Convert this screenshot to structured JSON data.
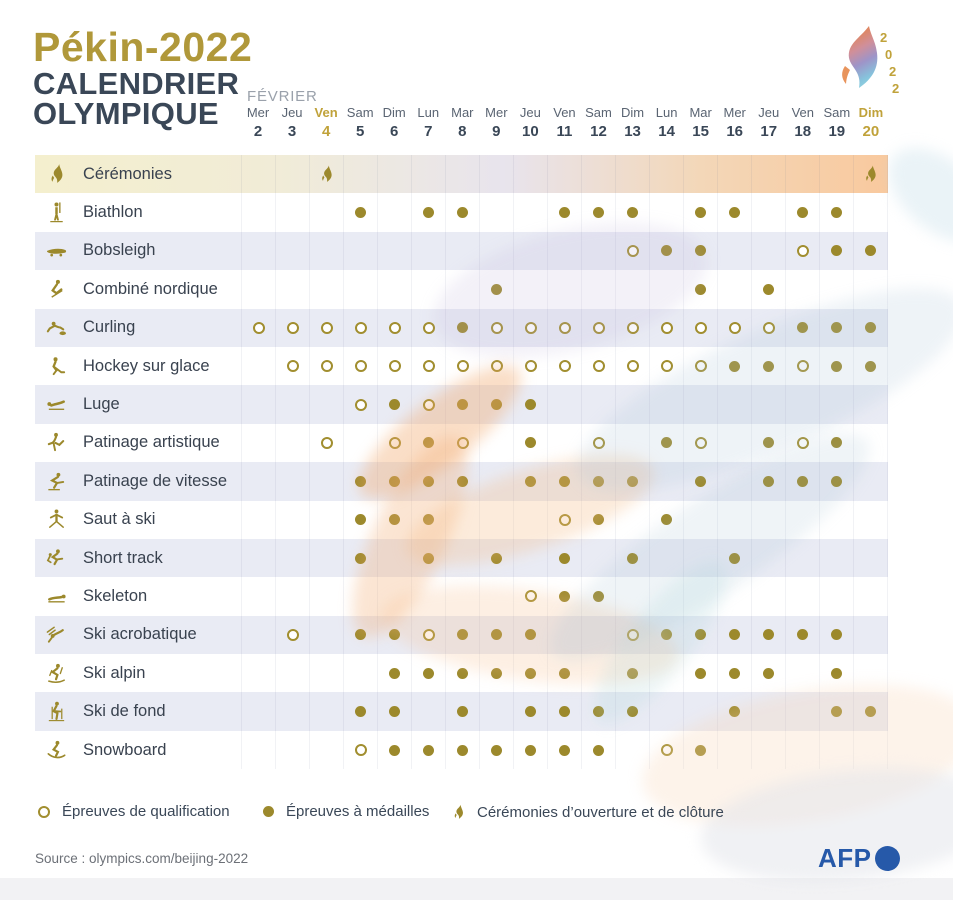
{
  "header": {
    "title": "Pékin-2022",
    "subtitle_line1": "CALENDRIER",
    "subtitle_line2": "OLYMPIQUE"
  },
  "logo": {
    "digits": [
      "2",
      "0",
      "2",
      "2"
    ]
  },
  "calendar": {
    "month_label": "FÉVRIER"
  },
  "chart_data": {
    "type": "table",
    "title": "Calendrier olympique Pékin-2022",
    "month": "FÉVRIER",
    "columns": [
      {
        "day": "Mer",
        "date": 2
      },
      {
        "day": "Jeu",
        "date": 3
      },
      {
        "day": "Ven",
        "date": 4,
        "accent": true
      },
      {
        "day": "Sam",
        "date": 5
      },
      {
        "day": "Dim",
        "date": 6
      },
      {
        "day": "Lun",
        "date": 7
      },
      {
        "day": "Mar",
        "date": 8
      },
      {
        "day": "Mer",
        "date": 9
      },
      {
        "day": "Jeu",
        "date": 10
      },
      {
        "day": "Ven",
        "date": 11
      },
      {
        "day": "Sam",
        "date": 12
      },
      {
        "day": "Dim",
        "date": 13
      },
      {
        "day": "Lun",
        "date": 14
      },
      {
        "day": "Mar",
        "date": 15
      },
      {
        "day": "Mer",
        "date": 16
      },
      {
        "day": "Jeu",
        "date": 17
      },
      {
        "day": "Ven",
        "date": 18
      },
      {
        "day": "Sam",
        "date": 19
      },
      {
        "day": "Dim",
        "date": 20,
        "accent": true
      }
    ],
    "rows": [
      {
        "sport": "Cérémonies",
        "icon": "flame-icon",
        "events": [
          {
            "date": 4,
            "type": "ceremony"
          },
          {
            "date": 20,
            "type": "ceremony"
          }
        ]
      },
      {
        "sport": "Biathlon",
        "icon": "biathlon-icon",
        "events": [
          {
            "date": 5,
            "type": "medal"
          },
          {
            "date": 7,
            "type": "medal"
          },
          {
            "date": 8,
            "type": "medal"
          },
          {
            "date": 11,
            "type": "medal"
          },
          {
            "date": 12,
            "type": "medal"
          },
          {
            "date": 13,
            "type": "medal"
          },
          {
            "date": 15,
            "type": "medal"
          },
          {
            "date": 16,
            "type": "medal"
          },
          {
            "date": 18,
            "type": "medal"
          },
          {
            "date": 19,
            "type": "medal"
          }
        ]
      },
      {
        "sport": "Bobsleigh",
        "icon": "bobsleigh-icon",
        "events": [
          {
            "date": 13,
            "type": "qualification"
          },
          {
            "date": 14,
            "type": "medal"
          },
          {
            "date": 15,
            "type": "medal"
          },
          {
            "date": 18,
            "type": "qualification"
          },
          {
            "date": 19,
            "type": "medal"
          },
          {
            "date": 20,
            "type": "medal"
          }
        ]
      },
      {
        "sport": "Combiné nordique",
        "icon": "combine-nordique-icon",
        "events": [
          {
            "date": 9,
            "type": "medal"
          },
          {
            "date": 15,
            "type": "medal"
          },
          {
            "date": 17,
            "type": "medal"
          }
        ]
      },
      {
        "sport": "Curling",
        "icon": "curling-icon",
        "events": [
          {
            "date": 2,
            "type": "qualification"
          },
          {
            "date": 3,
            "type": "qualification"
          },
          {
            "date": 4,
            "type": "qualification"
          },
          {
            "date": 5,
            "type": "qualification"
          },
          {
            "date": 6,
            "type": "qualification"
          },
          {
            "date": 7,
            "type": "qualification"
          },
          {
            "date": 8,
            "type": "medal"
          },
          {
            "date": 9,
            "type": "qualification"
          },
          {
            "date": 10,
            "type": "qualification"
          },
          {
            "date": 11,
            "type": "qualification"
          },
          {
            "date": 12,
            "type": "qualification"
          },
          {
            "date": 13,
            "type": "qualification"
          },
          {
            "date": 14,
            "type": "qualification"
          },
          {
            "date": 15,
            "type": "qualification"
          },
          {
            "date": 16,
            "type": "qualification"
          },
          {
            "date": 17,
            "type": "qualification"
          },
          {
            "date": 18,
            "type": "medal"
          },
          {
            "date": 19,
            "type": "medal"
          },
          {
            "date": 20,
            "type": "medal"
          }
        ]
      },
      {
        "sport": "Hockey sur glace",
        "icon": "hockey-icon",
        "events": [
          {
            "date": 3,
            "type": "qualification"
          },
          {
            "date": 4,
            "type": "qualification"
          },
          {
            "date": 5,
            "type": "qualification"
          },
          {
            "date": 6,
            "type": "qualification"
          },
          {
            "date": 7,
            "type": "qualification"
          },
          {
            "date": 8,
            "type": "qualification"
          },
          {
            "date": 9,
            "type": "qualification"
          },
          {
            "date": 10,
            "type": "qualification"
          },
          {
            "date": 11,
            "type": "qualification"
          },
          {
            "date": 12,
            "type": "qualification"
          },
          {
            "date": 13,
            "type": "qualification"
          },
          {
            "date": 14,
            "type": "qualification"
          },
          {
            "date": 15,
            "type": "qualification"
          },
          {
            "date": 16,
            "type": "medal"
          },
          {
            "date": 17,
            "type": "medal"
          },
          {
            "date": 18,
            "type": "qualification"
          },
          {
            "date": 19,
            "type": "medal"
          },
          {
            "date": 20,
            "type": "medal"
          }
        ]
      },
      {
        "sport": "Luge",
        "icon": "luge-icon",
        "events": [
          {
            "date": 5,
            "type": "qualification"
          },
          {
            "date": 6,
            "type": "medal"
          },
          {
            "date": 7,
            "type": "qualification"
          },
          {
            "date": 8,
            "type": "medal"
          },
          {
            "date": 9,
            "type": "medal"
          },
          {
            "date": 10,
            "type": "medal"
          }
        ]
      },
      {
        "sport": "Patinage artistique",
        "icon": "patinage-artistique-icon",
        "events": [
          {
            "date": 4,
            "type": "qualification"
          },
          {
            "date": 6,
            "type": "qualification"
          },
          {
            "date": 7,
            "type": "medal"
          },
          {
            "date": 8,
            "type": "qualification"
          },
          {
            "date": 10,
            "type": "medal"
          },
          {
            "date": 12,
            "type": "qualification"
          },
          {
            "date": 14,
            "type": "medal"
          },
          {
            "date": 15,
            "type": "qualification"
          },
          {
            "date": 17,
            "type": "medal"
          },
          {
            "date": 18,
            "type": "qualification"
          },
          {
            "date": 19,
            "type": "medal"
          }
        ]
      },
      {
        "sport": "Patinage de vitesse",
        "icon": "patinage-vitesse-icon",
        "events": [
          {
            "date": 5,
            "type": "medal"
          },
          {
            "date": 6,
            "type": "medal"
          },
          {
            "date": 7,
            "type": "medal"
          },
          {
            "date": 8,
            "type": "medal"
          },
          {
            "date": 10,
            "type": "medal"
          },
          {
            "date": 11,
            "type": "medal"
          },
          {
            "date": 12,
            "type": "medal"
          },
          {
            "date": 13,
            "type": "medal"
          },
          {
            "date": 15,
            "type": "medal"
          },
          {
            "date": 17,
            "type": "medal"
          },
          {
            "date": 18,
            "type": "medal"
          },
          {
            "date": 19,
            "type": "medal"
          }
        ]
      },
      {
        "sport": "Saut à ski",
        "icon": "saut-a-ski-icon",
        "events": [
          {
            "date": 5,
            "type": "medal"
          },
          {
            "date": 6,
            "type": "medal"
          },
          {
            "date": 7,
            "type": "medal"
          },
          {
            "date": 11,
            "type": "qualification"
          },
          {
            "date": 12,
            "type": "medal"
          },
          {
            "date": 14,
            "type": "medal"
          }
        ]
      },
      {
        "sport": "Short track",
        "icon": "short-track-icon",
        "events": [
          {
            "date": 5,
            "type": "medal"
          },
          {
            "date": 7,
            "type": "medal"
          },
          {
            "date": 9,
            "type": "medal"
          },
          {
            "date": 11,
            "type": "medal"
          },
          {
            "date": 13,
            "type": "medal"
          },
          {
            "date": 16,
            "type": "medal"
          }
        ]
      },
      {
        "sport": "Skeleton",
        "icon": "skeleton-icon",
        "events": [
          {
            "date": 10,
            "type": "qualification"
          },
          {
            "date": 11,
            "type": "medal"
          },
          {
            "date": 12,
            "type": "medal"
          }
        ]
      },
      {
        "sport": "Ski acrobatique",
        "icon": "ski-acrobatique-icon",
        "events": [
          {
            "date": 3,
            "type": "qualification"
          },
          {
            "date": 5,
            "type": "medal"
          },
          {
            "date": 6,
            "type": "medal"
          },
          {
            "date": 7,
            "type": "qualification"
          },
          {
            "date": 8,
            "type": "medal"
          },
          {
            "date": 9,
            "type": "medal"
          },
          {
            "date": 10,
            "type": "medal"
          },
          {
            "date": 13,
            "type": "qualification"
          },
          {
            "date": 14,
            "type": "medal"
          },
          {
            "date": 15,
            "type": "medal"
          },
          {
            "date": 16,
            "type": "medal"
          },
          {
            "date": 17,
            "type": "medal"
          },
          {
            "date": 18,
            "type": "medal"
          },
          {
            "date": 19,
            "type": "medal"
          }
        ]
      },
      {
        "sport": "Ski alpin",
        "icon": "ski-alpin-icon",
        "events": [
          {
            "date": 6,
            "type": "medal"
          },
          {
            "date": 7,
            "type": "medal"
          },
          {
            "date": 8,
            "type": "medal"
          },
          {
            "date": 9,
            "type": "medal"
          },
          {
            "date": 10,
            "type": "medal"
          },
          {
            "date": 11,
            "type": "medal"
          },
          {
            "date": 13,
            "type": "medal"
          },
          {
            "date": 15,
            "type": "medal"
          },
          {
            "date": 16,
            "type": "medal"
          },
          {
            "date": 17,
            "type": "medal"
          },
          {
            "date": 19,
            "type": "medal"
          }
        ]
      },
      {
        "sport": "Ski de fond",
        "icon": "ski-de-fond-icon",
        "events": [
          {
            "date": 5,
            "type": "medal"
          },
          {
            "date": 6,
            "type": "medal"
          },
          {
            "date": 8,
            "type": "medal"
          },
          {
            "date": 10,
            "type": "medal"
          },
          {
            "date": 11,
            "type": "medal"
          },
          {
            "date": 12,
            "type": "medal"
          },
          {
            "date": 13,
            "type": "medal"
          },
          {
            "date": 16,
            "type": "medal"
          },
          {
            "date": 19,
            "type": "medal"
          },
          {
            "date": 20,
            "type": "medal"
          }
        ]
      },
      {
        "sport": "Snowboard",
        "icon": "snowboard-icon",
        "events": [
          {
            "date": 5,
            "type": "qualification"
          },
          {
            "date": 6,
            "type": "medal"
          },
          {
            "date": 7,
            "type": "medal"
          },
          {
            "date": 8,
            "type": "medal"
          },
          {
            "date": 9,
            "type": "medal"
          },
          {
            "date": 10,
            "type": "medal"
          },
          {
            "date": 11,
            "type": "medal"
          },
          {
            "date": 12,
            "type": "medal"
          },
          {
            "date": 14,
            "type": "qualification"
          },
          {
            "date": 15,
            "type": "medal"
          }
        ]
      }
    ]
  },
  "legend": {
    "items": [
      {
        "symbol": "open",
        "label": "Épreuves de qualification"
      },
      {
        "symbol": "filled",
        "label": "Épreuves à médailles"
      },
      {
        "symbol": "flame",
        "label": "Cérémonies d’ouverture et de clôture"
      }
    ]
  },
  "footer": {
    "source": "Source : olympics.com/beijing-2022",
    "afp_label": "AFP"
  },
  "colors": {
    "gold_title": "#b0983a",
    "gold_accent": "#c0a23a",
    "gold_dot": "#9c892c",
    "navy": "#3a4757",
    "day_name": "#5a6472",
    "month_label": "#9aa1ab",
    "stripe": "rgba(231,233,243,0.92)",
    "source_text": "#6c7077",
    "afp_blue": "#2659a9"
  }
}
